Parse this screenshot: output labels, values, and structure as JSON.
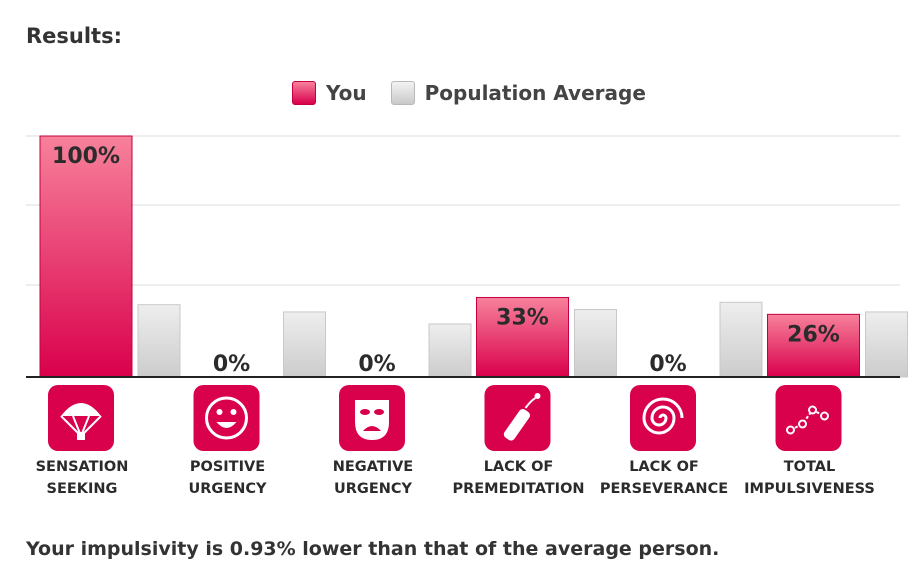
{
  "heading": "Results:",
  "legend": {
    "you_label": "You",
    "avg_label": "Population Average"
  },
  "colors": {
    "you": "#d9004c",
    "you_light": "#f7819b",
    "avg": "#d6d6d6",
    "icon_bg": "#d9004c"
  },
  "chart_data": {
    "type": "bar",
    "categories": [
      [
        "SENSATION",
        "SEEKING"
      ],
      [
        "POSITIVE",
        "URGENCY"
      ],
      [
        "NEGATIVE",
        "URGENCY"
      ],
      [
        "LACK OF",
        "PREMEDITATION"
      ],
      [
        "LACK OF",
        "PERSEVERANCE"
      ],
      [
        "TOTAL",
        "IMPULSIVENESS"
      ]
    ],
    "icons": [
      "parachute-icon",
      "smiling-face-icon",
      "drama-mask-icon",
      "firecracker-icon",
      "spiral-icon",
      "line-graph-icon"
    ],
    "series": [
      {
        "name": "You",
        "values": [
          100,
          0,
          0,
          33,
          0,
          26
        ],
        "labels": [
          "100%",
          "0%",
          "0%",
          "33%",
          "0%",
          "26%"
        ]
      },
      {
        "name": "Population Average",
        "values": [
          30,
          27,
          22,
          28,
          31,
          27
        ]
      }
    ],
    "ylim": [
      0,
      100
    ],
    "grid": true,
    "legend_position": "top-center"
  },
  "summary": "Your impulsivity is 0.93% lower than that of the average person."
}
